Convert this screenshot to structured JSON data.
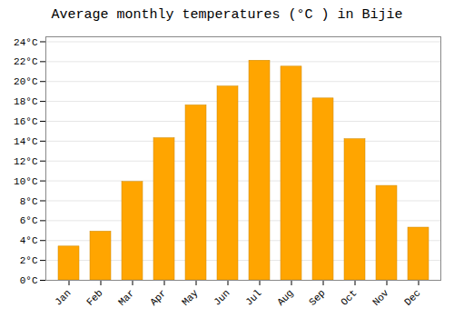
{
  "chart_data": {
    "type": "bar",
    "title": "Average monthly temperatures (°C ) in Bijie",
    "categories": [
      "Jan",
      "Feb",
      "Mar",
      "Apr",
      "May",
      "Jun",
      "Jul",
      "Aug",
      "Sep",
      "Oct",
      "Nov",
      "Dec"
    ],
    "values": [
      3.4,
      4.9,
      9.9,
      14.3,
      17.6,
      19.5,
      22.1,
      21.5,
      18.3,
      14.2,
      9.5,
      5.3
    ],
    "color": "#FFA500",
    "ylim": [
      0,
      24.5
    ],
    "yticks": [
      {
        "value": 0,
        "label": "0°C"
      },
      {
        "value": 2,
        "label": "2°C"
      },
      {
        "value": 4,
        "label": "4°C"
      },
      {
        "value": 6,
        "label": "6°C"
      },
      {
        "value": 8,
        "label": "8°C"
      },
      {
        "value": 10,
        "label": "10°C"
      },
      {
        "value": 12,
        "label": "12°C"
      },
      {
        "value": 14,
        "label": "14°C"
      },
      {
        "value": 16,
        "label": "16°C"
      },
      {
        "value": 18,
        "label": "18°C"
      },
      {
        "value": 20,
        "label": "20°C"
      },
      {
        "value": 22,
        "label": "22°C"
      },
      {
        "value": 24,
        "label": "24°C"
      }
    ],
    "grid": true
  }
}
